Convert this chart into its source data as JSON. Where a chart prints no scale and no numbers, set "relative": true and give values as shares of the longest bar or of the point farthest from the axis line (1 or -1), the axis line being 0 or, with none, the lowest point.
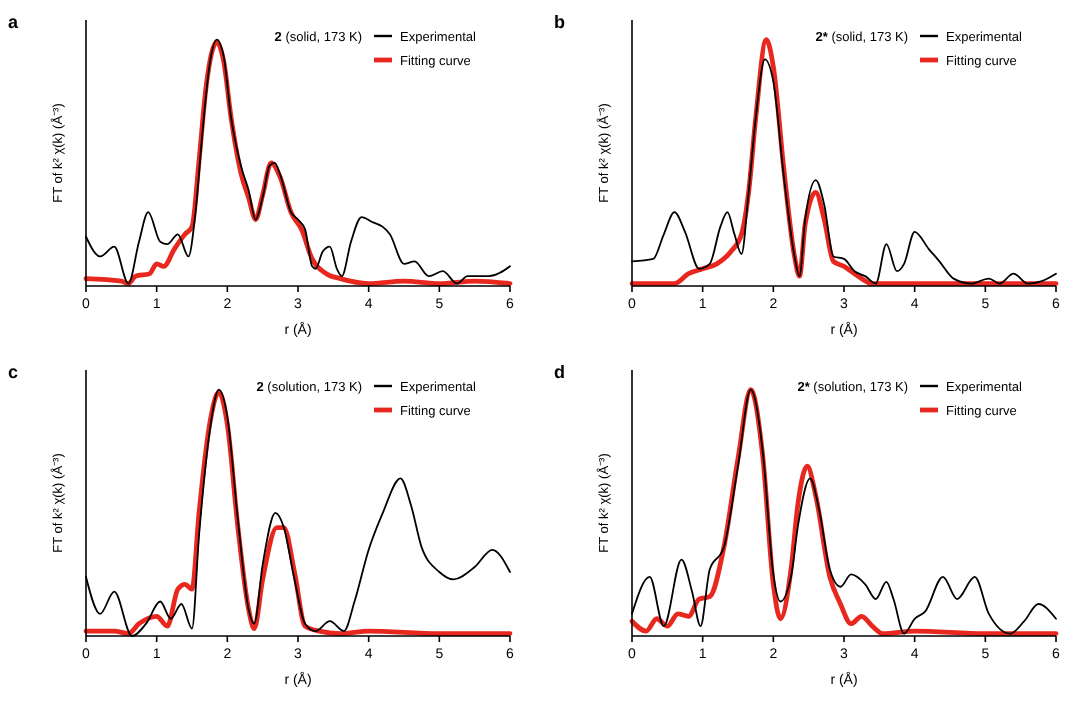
{
  "chart_data": [
    {
      "type": "line",
      "title": "a",
      "legend_title": "2 (solid, 173 K)",
      "xlabel": "r (Å)",
      "ylabel": "FT of k² χ(k) (Å⁻³)",
      "relative": true,
      "xlim": [
        0,
        6
      ],
      "xticks": [
        0,
        1,
        2,
        3,
        4,
        5,
        6
      ],
      "legend": "top right",
      "grid": false,
      "line_style": "solid",
      "series": [
        {
          "name": "Experimental",
          "color": "#000000",
          "x": [
            0,
            0.2,
            0.4,
            0.6,
            0.75,
            0.88,
            1.05,
            1.15,
            1.3,
            1.45,
            1.55,
            1.65,
            1.75,
            1.85,
            1.95,
            2.05,
            2.2,
            2.3,
            2.4,
            2.5,
            2.6,
            2.67,
            2.75,
            2.9,
            3.0,
            3.1,
            3.2,
            3.25,
            3.35,
            3.45,
            3.55,
            3.62,
            3.75,
            3.9,
            4.05,
            4.2,
            4.3,
            4.5,
            4.65,
            4.85,
            5.05,
            5.25,
            5.4,
            5.7,
            6.0
          ],
          "values": [
            0.2,
            0.12,
            0.16,
            0.01,
            0.18,
            0.3,
            0.18,
            0.17,
            0.21,
            0.12,
            0.3,
            0.63,
            0.9,
            1.0,
            0.93,
            0.69,
            0.48,
            0.39,
            0.27,
            0.36,
            0.49,
            0.5,
            0.45,
            0.3,
            0.27,
            0.23,
            0.08,
            0.07,
            0.14,
            0.16,
            0.07,
            0.04,
            0.18,
            0.28,
            0.26,
            0.24,
            0.21,
            0.09,
            0.1,
            0.04,
            0.06,
            0.01,
            0.04,
            0.04,
            0.08
          ]
        },
        {
          "name": "Fitting curve",
          "color": "#e8281e",
          "x": [
            0,
            0.5,
            0.6,
            0.7,
            0.9,
            1.0,
            1.1,
            1.25,
            1.4,
            1.5,
            1.6,
            1.7,
            1.85,
            1.95,
            2.05,
            2.2,
            2.3,
            2.4,
            2.5,
            2.62,
            2.75,
            2.9,
            3.05,
            3.2,
            3.4,
            3.6,
            4.0,
            4.5,
            5.0,
            5.5,
            6.0
          ],
          "values": [
            0.03,
            0.02,
            0.01,
            0.04,
            0.05,
            0.09,
            0.08,
            0.15,
            0.21,
            0.24,
            0.51,
            0.81,
            0.99,
            0.91,
            0.69,
            0.45,
            0.36,
            0.27,
            0.37,
            0.5,
            0.44,
            0.3,
            0.23,
            0.11,
            0.05,
            0.03,
            0.01,
            0.02,
            0.01,
            0.02,
            0.01
          ]
        }
      ]
    },
    {
      "type": "line",
      "title": "b",
      "legend_title": "2* (solid, 173 K)",
      "xlabel": "r (Å)",
      "ylabel": "FT of k² χ(k) (Å⁻³)",
      "relative": true,
      "xlim": [
        0,
        6
      ],
      "xticks": [
        0,
        1,
        2,
        3,
        4,
        5,
        6
      ],
      "legend": "top right",
      "grid": false,
      "line_style": "solid",
      "series": [
        {
          "name": "Experimental",
          "color": "#000000",
          "x": [
            0,
            0.3,
            0.45,
            0.6,
            0.75,
            0.95,
            1.1,
            1.25,
            1.35,
            1.45,
            1.55,
            1.65,
            1.75,
            1.88,
            2.0,
            2.15,
            2.3,
            2.37,
            2.45,
            2.6,
            2.72,
            2.85,
            3.0,
            3.15,
            3.3,
            3.45,
            3.6,
            3.75,
            3.85,
            4.0,
            4.2,
            4.35,
            4.55,
            4.8,
            5.05,
            5.2,
            5.4,
            5.6,
            5.8,
            6.0
          ],
          "values": [
            0.1,
            0.11,
            0.21,
            0.3,
            0.22,
            0.07,
            0.09,
            0.24,
            0.3,
            0.21,
            0.13,
            0.38,
            0.68,
            0.92,
            0.83,
            0.44,
            0.12,
            0.04,
            0.27,
            0.43,
            0.33,
            0.12,
            0.11,
            0.06,
            0.04,
            0.01,
            0.17,
            0.06,
            0.09,
            0.22,
            0.15,
            0.1,
            0.03,
            0.01,
            0.03,
            0.01,
            0.05,
            0.01,
            0.02,
            0.05
          ]
        },
        {
          "name": "Fitting curve",
          "color": "#e8281e",
          "x": [
            0,
            0.6,
            0.8,
            1.0,
            1.2,
            1.4,
            1.55,
            1.65,
            1.75,
            1.9,
            2.0,
            2.15,
            2.3,
            2.37,
            2.45,
            2.6,
            2.72,
            2.85,
            3.0,
            3.2,
            3.4,
            4.0,
            5.0,
            6.0
          ],
          "values": [
            0.01,
            0.01,
            0.05,
            0.07,
            0.09,
            0.14,
            0.21,
            0.38,
            0.68,
            1.0,
            0.89,
            0.47,
            0.12,
            0.04,
            0.25,
            0.38,
            0.27,
            0.1,
            0.08,
            0.04,
            0.01,
            0.01,
            0.01,
            0.01
          ]
        }
      ]
    },
    {
      "type": "line",
      "title": "c",
      "legend_title": "2 (solution, 173 K)",
      "xlabel": "r (Å)",
      "ylabel": "FT of k² χ(k) (Å⁻³)",
      "relative": true,
      "xlim": [
        0,
        6
      ],
      "xticks": [
        0,
        1,
        2,
        3,
        4,
        5,
        6
      ],
      "legend": "top right",
      "grid": false,
      "line_style": "solid",
      "series": [
        {
          "name": "Experimental",
          "color": "#000000",
          "x": [
            0,
            0.2,
            0.4,
            0.65,
            0.85,
            1.05,
            1.2,
            1.35,
            1.5,
            1.6,
            1.75,
            1.88,
            2.0,
            2.15,
            2.3,
            2.38,
            2.5,
            2.68,
            2.8,
            2.95,
            3.1,
            3.25,
            3.45,
            3.65,
            3.8,
            4.0,
            4.2,
            4.45,
            4.6,
            4.75,
            5.0,
            5.2,
            5.5,
            5.75,
            6.0
          ],
          "values": [
            0.24,
            0.09,
            0.18,
            0.0,
            0.05,
            0.14,
            0.07,
            0.13,
            0.03,
            0.41,
            0.83,
            1.0,
            0.89,
            0.47,
            0.11,
            0.05,
            0.29,
            0.5,
            0.44,
            0.23,
            0.05,
            0.02,
            0.06,
            0.02,
            0.14,
            0.35,
            0.5,
            0.64,
            0.53,
            0.36,
            0.26,
            0.23,
            0.28,
            0.35,
            0.26
          ]
        },
        {
          "name": "Fitting curve",
          "color": "#e8281e",
          "x": [
            0,
            0.4,
            0.6,
            0.75,
            1.0,
            1.15,
            1.3,
            1.4,
            1.5,
            1.6,
            1.75,
            1.88,
            2.0,
            2.15,
            2.3,
            2.38,
            2.5,
            2.7,
            2.8,
            2.95,
            3.1,
            3.3,
            3.6,
            4.0,
            5.0,
            6.0
          ],
          "values": [
            0.02,
            0.02,
            0.01,
            0.05,
            0.08,
            0.04,
            0.19,
            0.21,
            0.19,
            0.5,
            0.86,
            0.99,
            0.86,
            0.44,
            0.11,
            0.03,
            0.23,
            0.44,
            0.44,
            0.26,
            0.04,
            0.02,
            0.01,
            0.02,
            0.01,
            0.01
          ]
        }
      ]
    },
    {
      "type": "line",
      "title": "d",
      "legend_title": "2* (solution, 173 K)",
      "xlabel": "r (Å)",
      "ylabel": "FT of k² χ(k) (Å⁻³)",
      "relative": true,
      "xlim": [
        0,
        6
      ],
      "xticks": [
        0,
        1,
        2,
        3,
        4,
        5,
        6
      ],
      "legend": "top right",
      "grid": false,
      "line_style": "solid",
      "series": [
        {
          "name": "Experimental",
          "color": "#000000",
          "x": [
            0,
            0.25,
            0.45,
            0.7,
            0.85,
            0.97,
            1.1,
            1.3,
            1.5,
            1.68,
            1.85,
            2.0,
            2.1,
            2.25,
            2.35,
            2.52,
            2.65,
            2.8,
            2.95,
            3.1,
            3.3,
            3.45,
            3.6,
            3.7,
            3.85,
            4.0,
            4.15,
            4.4,
            4.6,
            4.85,
            5.05,
            5.35,
            5.55,
            5.75,
            6.0
          ],
          "values": [
            0.09,
            0.24,
            0.04,
            0.31,
            0.18,
            0.04,
            0.27,
            0.36,
            0.69,
            1.0,
            0.75,
            0.25,
            0.14,
            0.24,
            0.45,
            0.64,
            0.51,
            0.27,
            0.2,
            0.25,
            0.21,
            0.15,
            0.22,
            0.15,
            0.01,
            0.07,
            0.1,
            0.24,
            0.15,
            0.24,
            0.09,
            0.01,
            0.06,
            0.13,
            0.07
          ]
        },
        {
          "name": "Fitting curve",
          "color": "#e8281e",
          "x": [
            0,
            0.2,
            0.35,
            0.5,
            0.65,
            0.8,
            0.95,
            1.1,
            1.3,
            1.5,
            1.68,
            1.85,
            2.0,
            2.1,
            2.25,
            2.35,
            2.48,
            2.6,
            2.8,
            2.95,
            3.1,
            3.25,
            3.4,
            3.55,
            4.0,
            5.0,
            6.0
          ],
          "values": [
            0.06,
            0.02,
            0.07,
            0.04,
            0.09,
            0.08,
            0.15,
            0.16,
            0.36,
            0.72,
            1.0,
            0.73,
            0.21,
            0.07,
            0.27,
            0.54,
            0.69,
            0.57,
            0.24,
            0.13,
            0.05,
            0.08,
            0.04,
            0.01,
            0.02,
            0.01,
            0.01
          ]
        }
      ]
    }
  ]
}
